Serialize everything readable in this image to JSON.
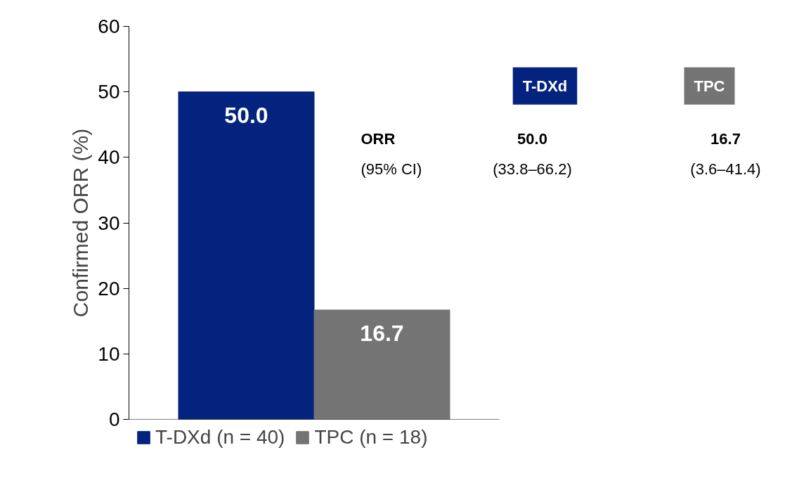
{
  "chart_data": {
    "type": "bar",
    "ylabel": "Confirmed ORR (%)",
    "categories": [
      null
    ],
    "series": [
      {
        "name": "T-DXd (n = 40)",
        "color": "#03237f",
        "values": [
          50.0
        ],
        "value_labels": [
          "50.0"
        ]
      },
      {
        "name": "TPC (n = 18)",
        "color": "#747474",
        "values": [
          16.7
        ],
        "value_labels": [
          "16.7"
        ]
      }
    ],
    "ylim": [
      0,
      60
    ],
    "yticks": [
      0,
      10,
      20,
      30,
      40,
      50,
      60
    ],
    "legend": "bottom",
    "annotations": [
      "T-DXd",
      "TPC",
      "ORR",
      "(95% CI)",
      "50.0",
      "(33.8–66.2)",
      "16.7",
      "(3.6–41.4)"
    ]
  }
}
